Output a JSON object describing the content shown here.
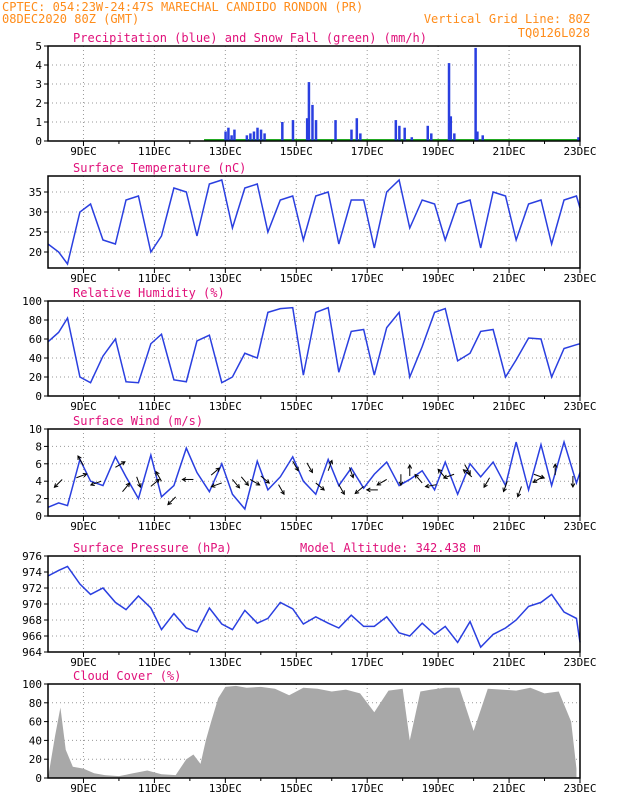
{
  "header": {
    "line1": "CPTEC:  054:23W-24:47S  MARECHAL CANDIDO RONDON (PR)",
    "line2_left": "08DEC2020 80Z (GMT)",
    "line2_right": "Vertical Grid Line: 80Z",
    "line3_right": "TQ0126L028"
  },
  "colors": {
    "header": "#ff8c1a",
    "title": "#e0107a",
    "line": "#2a3fe0",
    "snow": "#22aa22",
    "cloud": "#a8a8a8",
    "grid": "#999999"
  },
  "x_tick_labels": [
    "9DEC",
    "11DEC",
    "13DEC",
    "15DEC",
    "17DEC",
    "19DEC",
    "21DEC",
    "23DEC"
  ],
  "chart_data": [
    {
      "type": "bar",
      "title": "Precipitation (blue) and Snow Fall (green) (mm/h)",
      "ylim": [
        0,
        5
      ],
      "yticks": [
        0,
        1,
        2,
        3,
        4,
        5
      ],
      "series": [
        {
          "name": "Precipitation",
          "points": [
            [
              13.0,
              0.5
            ],
            [
              13.08,
              0.7
            ],
            [
              13.17,
              0.3
            ],
            [
              13.25,
              0.6
            ],
            [
              13.6,
              0.3
            ],
            [
              13.7,
              0.4
            ],
            [
              13.8,
              0.5
            ],
            [
              13.9,
              0.7
            ],
            [
              14.0,
              0.6
            ],
            [
              14.1,
              0.4
            ],
            [
              14.6,
              1.0
            ],
            [
              14.9,
              1.1
            ],
            [
              15.3,
              1.2
            ],
            [
              15.35,
              3.1
            ],
            [
              15.45,
              1.9
            ],
            [
              15.55,
              1.1
            ],
            [
              16.1,
              1.1
            ],
            [
              16.55,
              0.6
            ],
            [
              16.7,
              1.2
            ],
            [
              16.8,
              0.4
            ],
            [
              17.8,
              1.1
            ],
            [
              17.9,
              0.8
            ],
            [
              18.05,
              0.7
            ],
            [
              18.25,
              0.2
            ],
            [
              18.7,
              0.8
            ],
            [
              18.8,
              0.4
            ],
            [
              19.3,
              4.1
            ],
            [
              19.35,
              1.3
            ],
            [
              19.45,
              0.4
            ],
            [
              20.05,
              4.9
            ],
            [
              20.1,
              0.5
            ],
            [
              20.25,
              0.3
            ],
            [
              22.95,
              0.2
            ]
          ]
        },
        {
          "name": "Snow Fall",
          "points": [
            [
              12.4,
              0
            ],
            [
              23.0,
              0
            ]
          ]
        }
      ]
    },
    {
      "type": "line",
      "title": "Surface Temperature (nC)",
      "ylim": [
        16,
        39
      ],
      "yticks": [
        20,
        25,
        30,
        35
      ],
      "x": [
        8.0,
        8.3,
        8.55,
        8.9,
        9.2,
        9.55,
        9.9,
        10.2,
        10.55,
        10.9,
        11.2,
        11.55,
        11.9,
        12.2,
        12.55,
        12.9,
        13.2,
        13.55,
        13.9,
        14.2,
        14.55,
        14.9,
        15.2,
        15.55,
        15.9,
        16.2,
        16.55,
        16.9,
        17.2,
        17.55,
        17.9,
        18.2,
        18.55,
        18.9,
        19.2,
        19.55,
        19.9,
        20.2,
        20.55,
        20.9,
        21.2,
        21.55,
        21.9,
        22.2,
        22.55,
        22.9,
        23.0
      ],
      "y": [
        22,
        20,
        17,
        30,
        32,
        23,
        22,
        33,
        34,
        20,
        24,
        36,
        35,
        24,
        37,
        38,
        26,
        36,
        37,
        25,
        33,
        34,
        23,
        34,
        35,
        22,
        33,
        33,
        21,
        35,
        38,
        26,
        33,
        32,
        23,
        32,
        33,
        21,
        35,
        34,
        23,
        32,
        33,
        22,
        33,
        34,
        31
      ]
    },
    {
      "type": "line",
      "title": "Relative Humidity (%)",
      "ylim": [
        0,
        100
      ],
      "yticks": [
        0,
        20,
        40,
        60,
        80,
        100
      ],
      "x": [
        8.0,
        8.3,
        8.55,
        8.9,
        9.2,
        9.55,
        9.9,
        10.2,
        10.55,
        10.9,
        11.2,
        11.55,
        11.9,
        12.2,
        12.55,
        12.9,
        13.2,
        13.55,
        13.9,
        14.2,
        14.55,
        14.9,
        15.2,
        15.55,
        15.9,
        16.2,
        16.55,
        16.9,
        17.2,
        17.55,
        17.9,
        18.2,
        18.55,
        18.9,
        19.2,
        19.55,
        19.9,
        20.2,
        20.55,
        20.9,
        21.2,
        21.55,
        21.9,
        22.2,
        22.55,
        22.9,
        23.0
      ],
      "y": [
        57,
        67,
        82,
        20,
        14,
        42,
        60,
        15,
        14,
        55,
        65,
        17,
        15,
        58,
        64,
        14,
        20,
        45,
        40,
        88,
        92,
        93,
        22,
        88,
        93,
        25,
        68,
        70,
        22,
        72,
        88,
        20,
        52,
        88,
        92,
        37,
        45,
        68,
        70,
        20,
        38,
        61,
        60,
        20,
        50,
        54,
        55
      ]
    },
    {
      "type": "line",
      "title": "Surface Wind (m/s)",
      "ylim": [
        0,
        10
      ],
      "yticks": [
        0,
        2,
        4,
        6,
        8,
        10
      ],
      "x": [
        8.0,
        8.3,
        8.55,
        8.9,
        9.2,
        9.55,
        9.9,
        10.2,
        10.55,
        10.9,
        11.2,
        11.55,
        11.9,
        12.2,
        12.55,
        12.9,
        13.2,
        13.55,
        13.9,
        14.2,
        14.55,
        14.9,
        15.2,
        15.55,
        15.9,
        16.2,
        16.55,
        16.9,
        17.2,
        17.55,
        17.9,
        18.2,
        18.55,
        18.9,
        19.2,
        19.55,
        19.9,
        20.2,
        20.55,
        20.9,
        21.2,
        21.55,
        21.9,
        22.2,
        22.55,
        22.9,
        23.0
      ],
      "y": [
        1.0,
        1.5,
        1.2,
        6.5,
        4.0,
        3.5,
        6.8,
        4.5,
        2.0,
        7.0,
        2.2,
        3.5,
        7.8,
        5.0,
        2.8,
        6.0,
        2.5,
        0.8,
        6.3,
        3.0,
        4.5,
        6.8,
        4.0,
        2.5,
        6.5,
        3.5,
        5.5,
        3.2,
        4.8,
        6.2,
        3.5,
        4.2,
        5.2,
        3.0,
        6.2,
        2.5,
        6.0,
        4.5,
        6.2,
        3.5,
        8.5,
        3.0,
        8.2,
        3.5,
        8.5,
        3.8,
        5.0
      ],
      "vectors": [
        [
          8.4,
          4.2,
          225
        ],
        [
          8.8,
          4.4,
          20
        ],
        [
          9.0,
          5.8,
          120
        ],
        [
          9.5,
          4.0,
          200
        ],
        [
          9.9,
          5.6,
          30
        ],
        [
          10.1,
          2.8,
          50
        ],
        [
          10.5,
          4.5,
          290
        ],
        [
          10.9,
          3.4,
          40
        ],
        [
          11.2,
          4.0,
          120
        ],
        [
          11.6,
          2.2,
          225
        ],
        [
          12.1,
          4.2,
          180
        ],
        [
          12.6,
          4.7,
          40
        ],
        [
          12.9,
          3.8,
          200
        ],
        [
          13.2,
          4.2,
          310
        ],
        [
          13.45,
          4.5,
          310
        ],
        [
          13.7,
          4.2,
          330
        ],
        [
          14.0,
          4.6,
          320
        ],
        [
          14.5,
          3.6,
          300
        ],
        [
          14.9,
          6.3,
          300
        ],
        [
          15.3,
          6.1,
          300
        ],
        [
          15.55,
          3.8,
          320
        ],
        [
          15.9,
          5.2,
          70
        ],
        [
          16.2,
          3.6,
          300
        ],
        [
          16.5,
          5.6,
          290
        ],
        [
          16.9,
          3.4,
          220
        ],
        [
          17.3,
          3.0,
          180
        ],
        [
          17.55,
          4.2,
          210
        ],
        [
          17.95,
          4.8,
          270
        ],
        [
          18.2,
          4.6,
          90
        ],
        [
          18.55,
          3.8,
          130
        ],
        [
          18.95,
          3.6,
          190
        ],
        [
          19.2,
          4.4,
          130
        ],
        [
          19.45,
          4.8,
          200
        ],
        [
          19.75,
          5.9,
          300
        ],
        [
          19.95,
          4.5,
          140
        ],
        [
          20.45,
          4.4,
          240
        ],
        [
          20.95,
          4.0,
          250
        ],
        [
          21.35,
          3.4,
          250
        ],
        [
          21.7,
          4.8,
          340
        ],
        [
          21.95,
          4.5,
          210
        ],
        [
          22.3,
          4.7,
          90
        ],
        [
          22.8,
          4.6,
          270
        ]
      ]
    },
    {
      "type": "line",
      "title": "Surface Pressure (hPa)",
      "annotation": "Model Altitude: 342.438 m",
      "ylim": [
        964,
        976
      ],
      "yticks": [
        964,
        966,
        968,
        970,
        972,
        974,
        976
      ],
      "x": [
        8.0,
        8.3,
        8.55,
        8.9,
        9.2,
        9.55,
        9.9,
        10.2,
        10.55,
        10.9,
        11.2,
        11.55,
        11.9,
        12.2,
        12.55,
        12.9,
        13.2,
        13.55,
        13.9,
        14.2,
        14.55,
        14.9,
        15.2,
        15.55,
        15.9,
        16.2,
        16.55,
        16.9,
        17.2,
        17.55,
        17.9,
        18.2,
        18.55,
        18.9,
        19.2,
        19.55,
        19.9,
        20.2,
        20.55,
        20.9,
        21.2,
        21.55,
        21.9,
        22.2,
        22.55,
        22.9,
        23.0
      ],
      "y": [
        973.5,
        974.2,
        974.7,
        972.5,
        971.2,
        972.0,
        970.2,
        969.3,
        971.0,
        969.5,
        966.8,
        968.8,
        967.0,
        966.5,
        969.5,
        967.5,
        966.8,
        969.2,
        967.6,
        968.2,
        970.2,
        969.4,
        967.5,
        968.4,
        967.6,
        967.0,
        968.6,
        967.2,
        967.2,
        968.4,
        966.4,
        966.0,
        967.6,
        966.2,
        967.2,
        965.2,
        967.8,
        964.6,
        966.2,
        967.0,
        968.0,
        969.7,
        970.2,
        971.2,
        969.0,
        968.2,
        965.2
      ]
    },
    {
      "type": "bar",
      "title": "Cloud Cover (%)",
      "ylim": [
        0,
        100
      ],
      "yticks": [
        0,
        20,
        40,
        60,
        80,
        100
      ],
      "x": [
        8.0,
        8.2,
        8.35,
        8.5,
        8.7,
        9.0,
        9.3,
        9.6,
        10.0,
        10.4,
        10.8,
        11.2,
        11.6,
        11.9,
        12.1,
        12.3,
        12.45,
        12.6,
        12.8,
        13.0,
        13.3,
        13.6,
        14.0,
        14.4,
        14.8,
        15.2,
        15.6,
        16.0,
        16.4,
        16.8,
        17.2,
        17.6,
        18.0,
        18.2,
        18.5,
        18.8,
        19.2,
        19.6,
        20.0,
        20.4,
        20.8,
        21.2,
        21.6,
        22.0,
        22.4,
        22.75,
        22.9
      ],
      "values": [
        0,
        45,
        75,
        30,
        12,
        10,
        5,
        3,
        2,
        5,
        8,
        4,
        3,
        20,
        25,
        15,
        40,
        60,
        85,
        97,
        98,
        96,
        97,
        95,
        88,
        96,
        95,
        92,
        94,
        90,
        70,
        93,
        95,
        40,
        92,
        94,
        96,
        96,
        50,
        95,
        94,
        93,
        96,
        90,
        92,
        60,
        10
      ]
    }
  ]
}
